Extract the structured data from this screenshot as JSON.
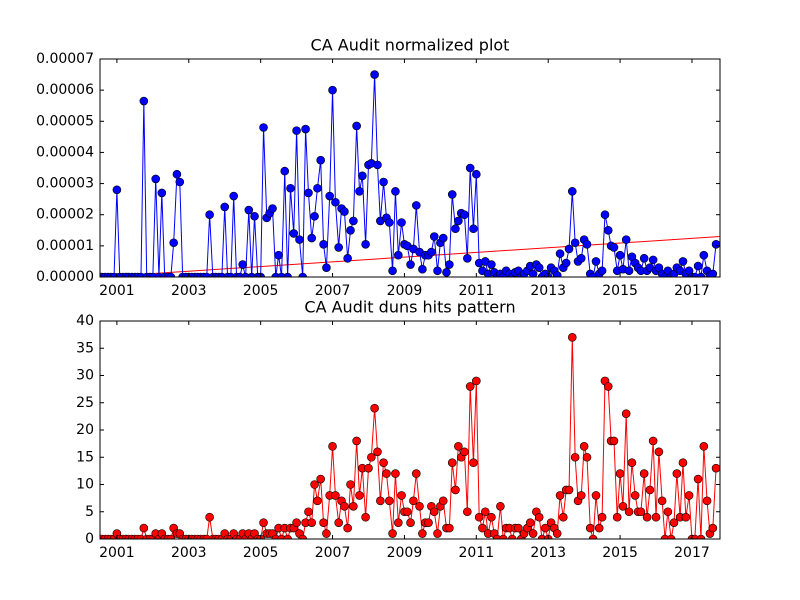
{
  "chart_data": [
    {
      "type": "line",
      "title": "CA Audit normalized plot",
      "xlim": [
        2000.53,
        2017.78
      ],
      "xticks": [
        2001,
        2003,
        2005,
        2007,
        2009,
        2011,
        2013,
        2015,
        2017
      ],
      "ylim": [
        0,
        7e-05
      ],
      "yticks": [
        {
          "value": 0,
          "label": "0.00000"
        },
        {
          "value": 1e-05,
          "label": "0.00001"
        },
        {
          "value": 2e-05,
          "label": "0.00002"
        },
        {
          "value": 3e-05,
          "label": "0.00003"
        },
        {
          "value": 4e-05,
          "label": "0.00004"
        },
        {
          "value": 5e-05,
          "label": "0.00005"
        },
        {
          "value": 6e-05,
          "label": "0.00006"
        },
        {
          "value": 7e-05,
          "label": "0.00007"
        }
      ],
      "x": [
        2000.58,
        2000.67,
        2000.75,
        2000.83,
        2000.92,
        2001,
        2001.08,
        2001.17,
        2001.25,
        2001.33,
        2001.42,
        2001.5,
        2001.58,
        2001.67,
        2001.75,
        2001.83,
        2001.92,
        2002,
        2002.08,
        2002.17,
        2002.25,
        2002.33,
        2002.42,
        2002.5,
        2002.58,
        2002.67,
        2002.75,
        2002.83,
        2002.92,
        2003,
        2003.08,
        2003.17,
        2003.25,
        2003.33,
        2003.42,
        2003.5,
        2003.58,
        2003.67,
        2003.75,
        2003.83,
        2003.92,
        2004,
        2004.08,
        2004.17,
        2004.25,
        2004.33,
        2004.42,
        2004.5,
        2004.58,
        2004.67,
        2004.75,
        2004.83,
        2004.92,
        2005,
        2005.08,
        2005.17,
        2005.25,
        2005.33,
        2005.42,
        2005.5,
        2005.58,
        2005.67,
        2005.75,
        2005.83,
        2005.92,
        2006,
        2006.08,
        2006.17,
        2006.25,
        2006.33,
        2006.42,
        2006.5,
        2006.58,
        2006.67,
        2006.75,
        2006.83,
        2006.92,
        2007,
        2007.08,
        2007.17,
        2007.25,
        2007.33,
        2007.42,
        2007.5,
        2007.58,
        2007.67,
        2007.75,
        2007.83,
        2007.92,
        2008,
        2008.08,
        2008.17,
        2008.25,
        2008.33,
        2008.42,
        2008.5,
        2008.58,
        2008.67,
        2008.75,
        2008.83,
        2008.92,
        2009,
        2009.08,
        2009.17,
        2009.25,
        2009.33,
        2009.42,
        2009.5,
        2009.58,
        2009.67,
        2009.75,
        2009.83,
        2009.92,
        2010,
        2010.08,
        2010.17,
        2010.25,
        2010.33,
        2010.42,
        2010.5,
        2010.58,
        2010.67,
        2010.75,
        2010.83,
        2010.92,
        2011,
        2011.08,
        2011.17,
        2011.25,
        2011.33,
        2011.42,
        2011.5,
        2011.58,
        2011.67,
        2011.75,
        2011.83,
        2011.92,
        2012,
        2012.08,
        2012.17,
        2012.25,
        2012.33,
        2012.42,
        2012.5,
        2012.58,
        2012.67,
        2012.75,
        2012.83,
        2012.92,
        2013,
        2013.08,
        2013.17,
        2013.25,
        2013.33,
        2013.42,
        2013.5,
        2013.58,
        2013.67,
        2013.75,
        2013.83,
        2013.92,
        2014,
        2014.08,
        2014.17,
        2014.25,
        2014.33,
        2014.42,
        2014.5,
        2014.58,
        2014.67,
        2014.75,
        2014.83,
        2014.92,
        2015,
        2015.08,
        2015.17,
        2015.25,
        2015.33,
        2015.42,
        2015.5,
        2015.58,
        2015.67,
        2015.75,
        2015.83,
        2015.92,
        2016,
        2016.08,
        2016.17,
        2016.25,
        2016.33,
        2016.42,
        2016.5,
        2016.58,
        2016.67,
        2016.75,
        2016.83,
        2016.92,
        2017,
        2017.08,
        2017.17,
        2017.25,
        2017.33,
        2017.42,
        2017.5,
        2017.58,
        2017.67
      ],
      "series": [
        {
          "color": "#0000ff",
          "values": [
            0,
            0,
            0,
            0,
            0,
            2.8e-05,
            0,
            0,
            0,
            0,
            0,
            0,
            0,
            0,
            5.65e-05,
            0,
            0,
            0,
            3.15e-05,
            0,
            2.7e-05,
            0,
            0,
            0,
            1.1e-05,
            3.3e-05,
            3.05e-05,
            0,
            0,
            0,
            0,
            0,
            0,
            0,
            0,
            0,
            2e-05,
            0,
            0,
            0,
            0,
            2.25e-05,
            0,
            0,
            2.6e-05,
            0,
            0,
            4e-06,
            0,
            2.15e-05,
            0,
            1.95e-05,
            0,
            0,
            4.8e-05,
            1.9e-05,
            2.05e-05,
            2.2e-05,
            0,
            7e-06,
            0,
            3.4e-05,
            0,
            2.85e-05,
            1.4e-05,
            4.7e-05,
            1.2e-05,
            0,
            4.75e-05,
            2.7e-05,
            1.25e-05,
            1.95e-05,
            2.85e-05,
            3.75e-05,
            1.05e-05,
            3e-06,
            2.6e-05,
            6e-05,
            2.4e-05,
            9.5e-06,
            2.2e-05,
            2.1e-05,
            6e-06,
            1.5e-05,
            1.8e-05,
            4.85e-05,
            2.75e-05,
            3.25e-05,
            1.05e-05,
            3.6e-05,
            3.65e-05,
            6.5e-05,
            3.6e-05,
            1.8e-05,
            3.05e-05,
            1.9e-05,
            1.75e-05,
            2e-06,
            2.75e-05,
            7e-06,
            1.75e-05,
            1.05e-05,
            1e-05,
            4e-06,
            9e-06,
            2.3e-05,
            8e-06,
            2.5e-06,
            7e-06,
            7e-06,
            8e-06,
            1.3e-05,
            2e-06,
            1.1e-05,
            1.25e-05,
            1.5e-06,
            4e-06,
            2.65e-05,
            1.55e-05,
            1.8e-05,
            2.05e-05,
            2e-05,
            6e-06,
            3.5e-05,
            1.55e-05,
            3.3e-05,
            4.5e-06,
            2e-06,
            5e-06,
            1e-06,
            4e-06,
            1.5e-06,
            0,
            1e-06,
            0,
            2e-06,
            1e-06,
            0,
            1.5e-06,
            2e-06,
            0,
            1e-06,
            2e-06,
            3.5e-06,
            1e-06,
            4e-06,
            3e-06,
            0,
            1e-06,
            0,
            3e-06,
            2e-06,
            5e-07,
            7.5e-06,
            3e-06,
            4.5e-06,
            9e-06,
            2.75e-05,
            1.1e-05,
            5e-06,
            6e-06,
            1.2e-05,
            1.05e-05,
            1e-06,
            0,
            5e-06,
            1e-06,
            2e-06,
            2e-05,
            1.5e-05,
            1e-05,
            9.5e-06,
            2e-06,
            7e-06,
            2.5e-06,
            1.2e-05,
            2e-06,
            6.5e-06,
            4.5e-06,
            3e-06,
            2e-06,
            6e-06,
            2e-06,
            3e-06,
            5.5e-06,
            2e-06,
            3e-06,
            1e-06,
            0,
            2e-06,
            0,
            1e-06,
            3e-06,
            2e-06,
            5e-06,
            1e-06,
            2e-06,
            0,
            0,
            3.5e-06,
            0,
            7e-06,
            2e-06,
            5e-07,
            1e-06,
            1.05e-05
          ]
        }
      ],
      "trend": {
        "color": "#ff0000",
        "x": [
          2000.53,
          2017.78
        ],
        "values": [
          0,
          1.3e-05
        ]
      }
    },
    {
      "type": "line",
      "title": "CA Audit duns hits pattern",
      "xlim": [
        2000.53,
        2017.78
      ],
      "xticks": [
        2001,
        2003,
        2005,
        2007,
        2009,
        2011,
        2013,
        2015,
        2017
      ],
      "ylim": [
        0,
        40
      ],
      "yticks": [
        0,
        5,
        10,
        15,
        20,
        25,
        30,
        35,
        40
      ],
      "x": [
        2000.58,
        2000.67,
        2000.75,
        2000.83,
        2000.92,
        2001,
        2001.08,
        2001.17,
        2001.25,
        2001.33,
        2001.42,
        2001.5,
        2001.58,
        2001.67,
        2001.75,
        2001.83,
        2001.92,
        2002,
        2002.08,
        2002.17,
        2002.25,
        2002.33,
        2002.42,
        2002.5,
        2002.58,
        2002.67,
        2002.75,
        2002.83,
        2002.92,
        2003,
        2003.08,
        2003.17,
        2003.25,
        2003.33,
        2003.42,
        2003.5,
        2003.58,
        2003.67,
        2003.75,
        2003.83,
        2003.92,
        2004,
        2004.08,
        2004.17,
        2004.25,
        2004.33,
        2004.42,
        2004.5,
        2004.58,
        2004.67,
        2004.75,
        2004.83,
        2004.92,
        2005,
        2005.08,
        2005.17,
        2005.25,
        2005.33,
        2005.42,
        2005.5,
        2005.58,
        2005.67,
        2005.75,
        2005.83,
        2005.92,
        2006,
        2006.08,
        2006.17,
        2006.25,
        2006.33,
        2006.42,
        2006.5,
        2006.58,
        2006.67,
        2006.75,
        2006.83,
        2006.92,
        2007,
        2007.08,
        2007.17,
        2007.25,
        2007.33,
        2007.42,
        2007.5,
        2007.58,
        2007.67,
        2007.75,
        2007.83,
        2007.92,
        2008,
        2008.08,
        2008.17,
        2008.25,
        2008.33,
        2008.42,
        2008.5,
        2008.58,
        2008.67,
        2008.75,
        2008.83,
        2008.92,
        2009,
        2009.08,
        2009.17,
        2009.25,
        2009.33,
        2009.42,
        2009.5,
        2009.58,
        2009.67,
        2009.75,
        2009.83,
        2009.92,
        2010,
        2010.08,
        2010.17,
        2010.25,
        2010.33,
        2010.42,
        2010.5,
        2010.58,
        2010.67,
        2010.75,
        2010.83,
        2010.92,
        2011,
        2011.08,
        2011.17,
        2011.25,
        2011.33,
        2011.42,
        2011.5,
        2011.58,
        2011.67,
        2011.75,
        2011.83,
        2011.92,
        2012,
        2012.08,
        2012.17,
        2012.25,
        2012.33,
        2012.42,
        2012.5,
        2012.58,
        2012.67,
        2012.75,
        2012.83,
        2012.92,
        2013,
        2013.08,
        2013.17,
        2013.25,
        2013.33,
        2013.42,
        2013.5,
        2013.58,
        2013.67,
        2013.75,
        2013.83,
        2013.92,
        2014,
        2014.08,
        2014.17,
        2014.25,
        2014.33,
        2014.42,
        2014.5,
        2014.58,
        2014.67,
        2014.75,
        2014.83,
        2014.92,
        2015,
        2015.08,
        2015.17,
        2015.25,
        2015.33,
        2015.42,
        2015.5,
        2015.58,
        2015.67,
        2015.75,
        2015.83,
        2015.92,
        2016,
        2016.08,
        2016.17,
        2016.25,
        2016.33,
        2016.42,
        2016.5,
        2016.58,
        2016.67,
        2016.75,
        2016.83,
        2016.92,
        2017,
        2017.08,
        2017.17,
        2017.25,
        2017.33,
        2017.42,
        2017.5,
        2017.58,
        2017.67
      ],
      "series": [
        {
          "color": "#ff0000",
          "values": [
            0,
            0,
            0,
            0,
            0,
            1,
            0,
            0,
            0,
            0,
            0,
            0,
            0,
            0,
            2,
            0,
            0,
            0,
            1,
            0,
            1,
            0,
            0,
            0,
            2,
            1,
            1,
            0,
            0,
            0,
            0,
            0,
            0,
            0,
            0,
            0,
            4,
            0,
            0,
            0,
            0,
            1,
            0,
            0,
            1,
            0,
            0,
            1,
            0,
            1,
            0,
            1,
            0,
            0,
            3,
            1,
            1,
            1,
            0,
            2,
            0,
            2,
            0,
            2,
            2,
            3,
            1,
            0,
            3,
            5,
            3,
            10,
            7,
            11,
            3,
            1,
            8,
            17,
            8,
            3,
            7,
            6,
            2,
            10,
            6,
            18,
            8,
            13,
            4,
            13,
            15,
            24,
            16,
            7,
            14,
            12,
            7,
            1,
            12,
            3,
            8,
            5,
            5,
            3,
            7,
            12,
            6,
            1,
            3,
            3,
            6,
            5,
            1,
            6,
            7,
            2,
            2,
            14,
            9,
            17,
            15,
            16,
            5,
            28,
            14,
            29,
            4,
            2,
            5,
            1,
            4,
            1,
            0,
            6,
            0,
            2,
            2,
            0,
            2,
            2,
            0,
            1,
            2,
            3,
            1,
            5,
            4,
            0,
            2,
            0,
            3,
            2,
            1,
            8,
            4,
            9,
            9,
            37,
            15,
            7,
            8,
            17,
            15,
            2,
            0,
            8,
            2,
            4,
            29,
            28,
            18,
            18,
            4,
            12,
            6,
            23,
            5,
            14,
            8,
            5,
            5,
            12,
            4,
            9,
            18,
            4,
            16,
            7,
            0,
            5,
            0,
            3,
            12,
            4,
            14,
            4,
            8,
            0,
            0,
            11,
            0,
            17,
            7,
            1,
            2,
            13
          ]
        }
      ]
    }
  ]
}
